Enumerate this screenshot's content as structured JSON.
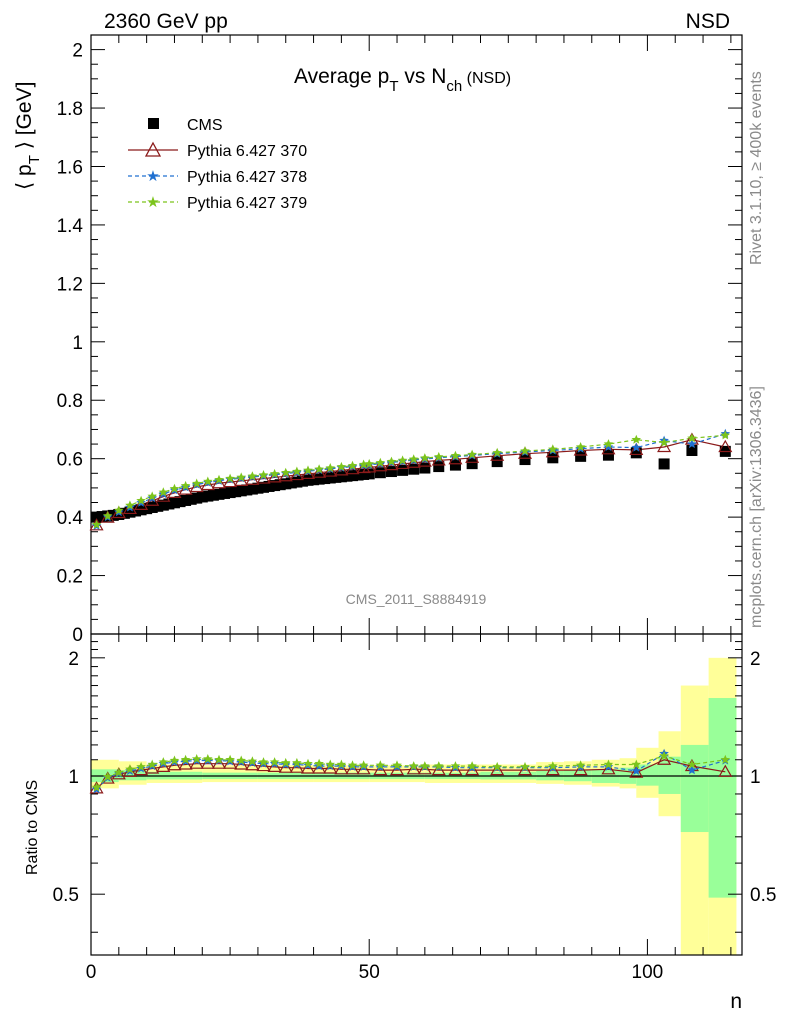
{
  "header": {
    "left": "2360 GeV pp",
    "right": "NSD"
  },
  "side_labels": {
    "rivet": "Rivet 3.1.10, ≥ 400k events",
    "mcplots": "mcplots.cern.ch [arXiv:1306.3436]"
  },
  "watermark": "CMS_2011_S8884919",
  "colors": {
    "cms": "#000000",
    "p370": "#8b1a1a",
    "p378": "#2070d0",
    "p379": "#7cc41c",
    "band_yellow": "#ffff99",
    "band_green": "#99ff99"
  },
  "chart_data": [
    {
      "type": "scatter",
      "title": "Average p_T vs N_ch (NSD)",
      "title_parts": {
        "main": "Average p",
        "sub1": "T",
        "mid": " vs N",
        "sub2": "ch",
        "tail": " (NSD)"
      },
      "ylabel": "⟨ p_T ⟩ [GeV]",
      "ylabel_parts": {
        "open": "⟨ p",
        "sub": "T",
        "close": " ⟩ [GeV]"
      },
      "xlim": [
        0,
        117
      ],
      "ylim": [
        0,
        2.05
      ],
      "yticks": [
        0,
        0.2,
        0.4,
        0.6,
        0.8,
        1,
        1.2,
        1.4,
        1.6,
        1.8,
        2
      ],
      "ytick_labels": [
        "0",
        "0.2",
        "0.4",
        "0.6",
        "0.8",
        "1",
        "1.2",
        "1.4",
        "1.6",
        "1.8",
        "2"
      ],
      "legend": [
        "CMS",
        "Pythia 6.427 370",
        "Pythia 6.427 378",
        "Pythia 6.427 379"
      ],
      "legend_position": "top-left",
      "x": [
        1,
        2,
        3,
        4,
        5,
        6,
        7,
        8,
        9,
        10,
        11,
        12,
        13,
        14,
        15,
        16,
        17,
        18,
        19,
        20,
        21,
        22,
        23,
        24,
        25,
        26,
        27,
        28,
        29,
        30,
        31,
        32,
        33,
        34,
        35,
        36,
        37,
        38,
        39,
        40,
        41,
        42,
        43,
        44,
        45,
        46,
        47,
        48,
        49,
        50,
        52,
        54,
        56,
        58,
        60,
        62.5,
        65.5,
        68.5,
        73,
        78,
        83,
        88,
        93,
        98,
        103,
        108,
        114
      ],
      "series": [
        {
          "name": "CMS",
          "marker": "square",
          "values": [
            0.4,
            0.402,
            0.404,
            0.406,
            0.409,
            0.413,
            0.417,
            0.421,
            0.425,
            0.429,
            0.433,
            0.437,
            0.441,
            0.445,
            0.449,
            0.453,
            0.457,
            0.461,
            0.465,
            0.469,
            0.472,
            0.475,
            0.478,
            0.481,
            0.484,
            0.487,
            0.49,
            0.493,
            0.496,
            0.499,
            0.502,
            0.505,
            0.508,
            0.511,
            0.514,
            0.517,
            0.52,
            0.523,
            0.526,
            0.528,
            0.53,
            0.532,
            0.534,
            0.536,
            0.538,
            0.54,
            0.542,
            0.544,
            0.546,
            0.548,
            0.552,
            0.556,
            0.56,
            0.564,
            0.568,
            0.573,
            0.578,
            0.583,
            0.59,
            0.597,
            0.603,
            0.608,
            0.612,
            0.62,
            0.582,
            0.628,
            0.625
          ]
        },
        {
          "name": "Pythia 6.427 370",
          "marker": "triangle-open",
          "values": [
            0.372,
            0.386,
            0.398,
            0.406,
            0.414,
            0.421,
            0.428,
            0.435,
            0.442,
            0.449,
            0.456,
            0.463,
            0.47,
            0.477,
            0.483,
            0.489,
            0.494,
            0.499,
            0.503,
            0.507,
            0.51,
            0.513,
            0.516,
            0.518,
            0.52,
            0.522,
            0.524,
            0.526,
            0.528,
            0.53,
            0.532,
            0.534,
            0.536,
            0.538,
            0.54,
            0.542,
            0.544,
            0.546,
            0.548,
            0.55,
            0.552,
            0.554,
            0.556,
            0.558,
            0.56,
            0.562,
            0.564,
            0.566,
            0.568,
            0.57,
            0.574,
            0.578,
            0.582,
            0.586,
            0.59,
            0.594,
            0.598,
            0.603,
            0.61,
            0.617,
            0.622,
            0.628,
            0.632,
            0.63,
            0.64,
            0.665,
            0.64
          ]
        },
        {
          "name": "Pythia 6.427 378",
          "marker": "star",
          "values": [
            0.37,
            0.388,
            0.4,
            0.409,
            0.417,
            0.425,
            0.433,
            0.441,
            0.449,
            0.457,
            0.465,
            0.472,
            0.479,
            0.486,
            0.492,
            0.497,
            0.502,
            0.507,
            0.511,
            0.515,
            0.518,
            0.521,
            0.524,
            0.527,
            0.529,
            0.531,
            0.533,
            0.535,
            0.537,
            0.539,
            0.541,
            0.543,
            0.545,
            0.547,
            0.549,
            0.551,
            0.553,
            0.555,
            0.557,
            0.559,
            0.561,
            0.563,
            0.565,
            0.567,
            0.569,
            0.571,
            0.573,
            0.575,
            0.577,
            0.579,
            0.583,
            0.587,
            0.591,
            0.595,
            0.599,
            0.603,
            0.607,
            0.611,
            0.617,
            0.623,
            0.628,
            0.634,
            0.64,
            0.638,
            0.662,
            0.65,
            0.685
          ]
        },
        {
          "name": "Pythia 6.427 379",
          "marker": "star",
          "values": [
            0.374,
            0.392,
            0.404,
            0.414,
            0.423,
            0.432,
            0.44,
            0.448,
            0.456,
            0.464,
            0.471,
            0.478,
            0.485,
            0.491,
            0.497,
            0.502,
            0.507,
            0.511,
            0.515,
            0.519,
            0.522,
            0.525,
            0.528,
            0.53,
            0.532,
            0.534,
            0.536,
            0.538,
            0.54,
            0.542,
            0.544,
            0.546,
            0.548,
            0.55,
            0.552,
            0.554,
            0.556,
            0.558,
            0.56,
            0.562,
            0.564,
            0.566,
            0.568,
            0.57,
            0.572,
            0.574,
            0.576,
            0.578,
            0.58,
            0.582,
            0.586,
            0.59,
            0.594,
            0.598,
            0.602,
            0.606,
            0.61,
            0.614,
            0.62,
            0.626,
            0.632,
            0.64,
            0.65,
            0.665,
            0.655,
            0.67,
            0.68
          ]
        }
      ]
    },
    {
      "type": "scatter",
      "ylabel": "Ratio to CMS",
      "xlabel": "n",
      "xlim": [
        0,
        117
      ],
      "ylim": [
        0.35,
        2.3
      ],
      "yticks": [
        0.5,
        1,
        2
      ],
      "ytick_labels": [
        "0.5",
        "1",
        "2"
      ],
      "xticks": [
        0,
        50,
        100
      ],
      "xtick_labels": [
        "0",
        "50",
        "100"
      ],
      "ratio_x": [
        1,
        3,
        5,
        7,
        9,
        11,
        13,
        15,
        17,
        19,
        21,
        23,
        25,
        27,
        29,
        31,
        33,
        35,
        37,
        39,
        41,
        43,
        45,
        47,
        49,
        52,
        55,
        58,
        60,
        62.5,
        65.5,
        68.5,
        73,
        78,
        83,
        88,
        93,
        98,
        103,
        108,
        114
      ],
      "ratio_series": [
        {
          "name": "Pythia 6.427 370",
          "values": [
            0.93,
            0.985,
            1.01,
            1.025,
            1.035,
            1.045,
            1.055,
            1.065,
            1.07,
            1.075,
            1.075,
            1.075,
            1.075,
            1.07,
            1.065,
            1.06,
            1.055,
            1.05,
            1.05,
            1.045,
            1.045,
            1.045,
            1.04,
            1.04,
            1.04,
            1.035,
            1.035,
            1.04,
            1.04,
            1.035,
            1.035,
            1.035,
            1.035,
            1.035,
            1.035,
            1.035,
            1.04,
            1.02,
            1.1,
            1.06,
            1.025
          ]
        },
        {
          "name": "Pythia 6.427 378",
          "values": [
            0.925,
            0.99,
            1.015,
            1.03,
            1.045,
            1.06,
            1.075,
            1.085,
            1.09,
            1.095,
            1.095,
            1.095,
            1.09,
            1.085,
            1.08,
            1.075,
            1.075,
            1.07,
            1.07,
            1.065,
            1.06,
            1.06,
            1.06,
            1.055,
            1.055,
            1.055,
            1.055,
            1.055,
            1.055,
            1.055,
            1.05,
            1.05,
            1.05,
            1.05,
            1.05,
            1.055,
            1.055,
            1.03,
            1.14,
            1.035,
            1.095
          ]
        },
        {
          "name": "Pythia 6.427 379",
          "values": [
            0.935,
            0.995,
            1.02,
            1.04,
            1.055,
            1.07,
            1.085,
            1.095,
            1.1,
            1.105,
            1.105,
            1.1,
            1.1,
            1.095,
            1.09,
            1.085,
            1.085,
            1.08,
            1.08,
            1.075,
            1.075,
            1.07,
            1.07,
            1.065,
            1.065,
            1.065,
            1.065,
            1.06,
            1.06,
            1.06,
            1.06,
            1.06,
            1.055,
            1.055,
            1.06,
            1.065,
            1.07,
            1.07,
            1.125,
            1.07,
            1.1
          ]
        }
      ],
      "bands": {
        "edges": [
          0,
          5,
          10,
          20,
          30,
          40,
          50,
          60,
          70,
          80,
          85,
          90,
          95,
          98,
          102,
          106,
          111,
          116
        ],
        "yellow_lo": [
          0.93,
          0.95,
          0.96,
          0.965,
          0.965,
          0.965,
          0.965,
          0.96,
          0.96,
          0.955,
          0.95,
          0.94,
          0.93,
          0.88,
          0.79,
          0.05,
          0.1
        ],
        "yellow_hi": [
          1.1,
          1.09,
          1.07,
          1.065,
          1.065,
          1.065,
          1.065,
          1.07,
          1.07,
          1.085,
          1.09,
          1.1,
          1.11,
          1.18,
          1.3,
          1.7,
          2.0
        ],
        "green_lo": [
          0.965,
          0.975,
          0.98,
          0.982,
          0.982,
          0.982,
          0.982,
          0.982,
          0.98,
          0.975,
          0.97,
          0.96,
          0.955,
          0.945,
          0.9,
          0.72,
          0.49
        ],
        "green_hi": [
          1.04,
          1.035,
          1.025,
          1.02,
          1.02,
          1.02,
          1.02,
          1.02,
          1.025,
          1.03,
          1.035,
          1.04,
          1.05,
          1.07,
          1.12,
          1.2,
          1.58
        ]
      }
    }
  ]
}
